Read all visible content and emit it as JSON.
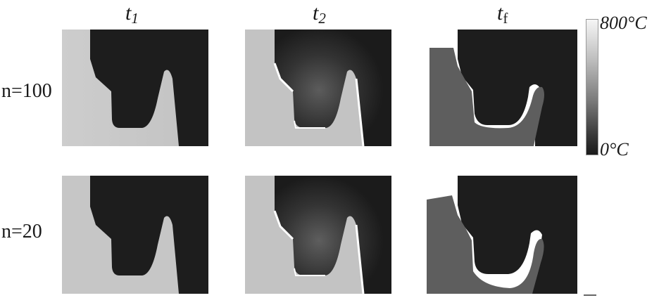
{
  "columns": [
    {
      "base": "t",
      "sub": "1"
    },
    {
      "base": "t",
      "sub": "2"
    },
    {
      "base": "t",
      "sub": "f"
    }
  ],
  "rows": [
    "n=100",
    "n=20"
  ],
  "colorbar": {
    "max_label": "800°C",
    "min_label": "0°C",
    "colors": [
      "#f6f6f6",
      "#1b1b1b"
    ]
  },
  "colors": {
    "hot_material": "#c7c7c7",
    "cold_material": "#1d1d1d",
    "final_material": "#5e5e5e",
    "background": "#ffffff"
  }
}
